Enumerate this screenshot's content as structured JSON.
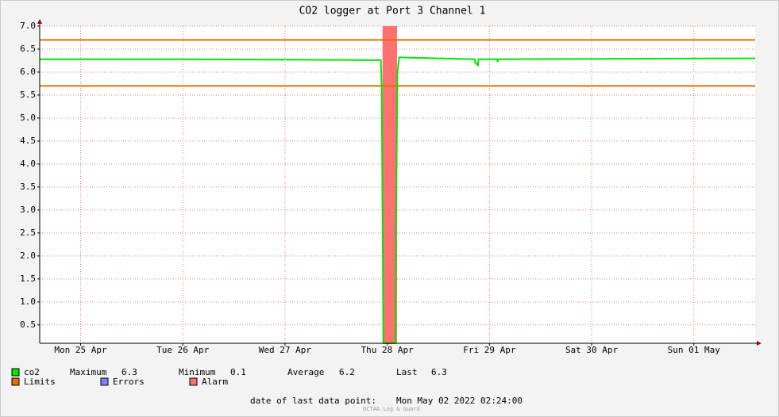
{
  "chart_data": {
    "type": "line",
    "title": "CO2 logger at Port 3 Channel 1",
    "xlim": [
      "2022-04-25 02:24",
      "2022-05-02 02:24"
    ],
    "xticks": [
      {
        "value": "2022-04-25 12:00",
        "label": "Mon 25 Apr"
      },
      {
        "value": "2022-04-26 12:00",
        "label": "Tue 26 Apr"
      },
      {
        "value": "2022-04-27 12:00",
        "label": "Wed 27 Apr"
      },
      {
        "value": "2022-04-28 12:00",
        "label": "Thu 28 Apr"
      },
      {
        "value": "2022-04-29 12:00",
        "label": "Fri 29 Apr"
      },
      {
        "value": "2022-04-30 12:00",
        "label": "Sat 30 Apr"
      },
      {
        "value": "2022-05-01 12:00",
        "label": "Sun 01 May"
      }
    ],
    "ylim": [
      0.1,
      7.0
    ],
    "yticks": [
      0.5,
      {
        "value": 1,
        "label": "1.0"
      },
      1.5,
      {
        "value": 2,
        "label": "2.0"
      },
      2.5,
      {
        "value": 3,
        "label": "3.0"
      },
      3.5,
      {
        "value": 4,
        "label": "4.0"
      },
      4.5,
      {
        "value": 5,
        "label": "5.0"
      },
      5.5,
      {
        "value": 6,
        "label": "6.0"
      },
      6.5,
      {
        "value": 7,
        "label": "7.0"
      }
    ],
    "grid": true,
    "series": [
      {
        "name": "co2",
        "color": "#00e600",
        "x": [
          "2022-04-25 02:24",
          "2022-04-26 12:00",
          "2022-04-28 10:30",
          "2022-04-28 10:42",
          "2022-04-28 11:06",
          "2022-04-28 13:54",
          "2022-04-28 14:06",
          "2022-04-28 14:24",
          "2022-04-28 14:48",
          "2022-04-29 08:36",
          "2022-04-29 08:42",
          "2022-04-29 09:18",
          "2022-04-29 09:24",
          "2022-04-29 13:48",
          "2022-04-29 13:54",
          "2022-04-29 14:00",
          "2022-05-02 02:24"
        ],
        "values": [
          6.28,
          6.28,
          6.26,
          5.6,
          0.1,
          0.1,
          3.0,
          6.0,
          6.32,
          6.28,
          6.2,
          6.15,
          6.28,
          6.28,
          6.22,
          6.28,
          6.3
        ]
      }
    ],
    "stats": [
      {
        "label": "Maximum",
        "value": 6.3
      },
      {
        "label": "Minimum",
        "value": 0.1
      },
      {
        "label": "Average",
        "value": 6.2
      },
      {
        "label": "Last",
        "value": 6.3
      }
    ],
    "limits": {
      "name": "Limits",
      "color": "#e07000",
      "values": [
        6.7,
        5.7
      ]
    },
    "errors": {
      "name": "Errors",
      "color": "#7f7fff"
    },
    "alarms": {
      "name": "Alarm",
      "color": "#ff7070",
      "x": [
        [
          "2022-04-28 10:54",
          "2022-04-28 14:18"
        ]
      ]
    },
    "last_data_point": {
      "label": "date of last data point:",
      "value": "Mon May 02 2022 02:24:00"
    },
    "watermark": "OCTAA Log & Guard"
  }
}
